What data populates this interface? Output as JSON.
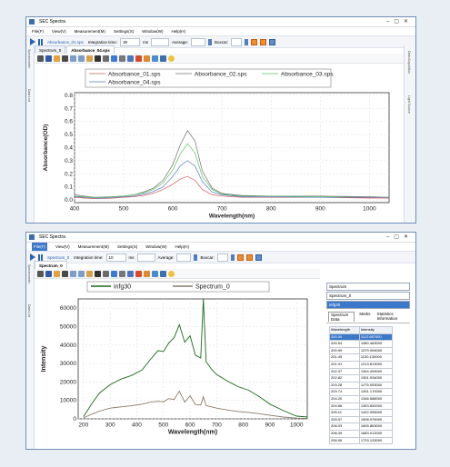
{
  "window1": {
    "title": "SEC Spectra",
    "menu": [
      "File(F)",
      "View(V)",
      "Measurement(M)",
      "Settings(S)",
      "Window(W)",
      "Help(H)"
    ],
    "toolbar": {
      "file_field": "Absorbance_01.sps",
      "integration_label": "Integration time:",
      "integration_value": "30",
      "unit": "ms",
      "average_label": "Average:",
      "boxcar_label": "Boxcar:"
    },
    "tabs": [
      "Spectrum_0",
      "Absorbance_04.sps"
    ],
    "right_vtabs": [
      "Data Acquisition",
      "Light Source"
    ],
    "left_vtabs": [
      "Spectrometer",
      "Data List"
    ]
  },
  "window2": {
    "title": "SEC Spectra",
    "menu": [
      "File(F)",
      "View(V)",
      "Measurement(M)",
      "Settings(S)",
      "Window(W)",
      "Help(H)"
    ],
    "toolbar": {
      "file_field": "Spectrum_0",
      "integration_label": "Integration time:",
      "integration_value": "10",
      "unit": "ms",
      "average_label": "Average:",
      "boxcar_label": "Boxcar:"
    },
    "tabs": [
      "Spectrum_0"
    ],
    "left_vtabs": [
      "Spectrometer",
      "Data List"
    ],
    "side": {
      "spectrum_header": "Spectrum",
      "items": [
        "Spectrum_0",
        "infg30"
      ],
      "tabs": [
        "Spectrum Data",
        "Marks",
        "Statistics Information"
      ],
      "col_wavelength": "Wavelength",
      "col_intensity": "Intensity",
      "rows": [
        [
          "200.00",
          "1112.687000"
        ],
        [
          "200.54",
          "1080.483000"
        ],
        [
          "200.99",
          "1079.054000"
        ],
        [
          "201.45",
          "1130.130000"
        ],
        [
          "201.91",
          "1213.819000"
        ],
        [
          "202.37",
          "1304.493000"
        ],
        [
          "202.82",
          "1301.034000"
        ],
        [
          "203.28",
          "1275.053000"
        ],
        [
          "203.74",
          "1301.170000"
        ],
        [
          "204.20",
          "1346.588000"
        ],
        [
          "204.66",
          "1353.830000"
        ],
        [
          "205.11",
          "1422.055000"
        ],
        [
          "205.57",
          "1508.975000"
        ],
        [
          "206.03",
          "1605.863000"
        ],
        [
          "206.49",
          "1683.012000"
        ],
        [
          "206.95",
          "1733.133000"
        ]
      ]
    }
  },
  "chart_data": [
    {
      "type": "line",
      "xlabel": "Wavelength(nm)",
      "ylabel": "Absorbance(OD)",
      "xlim": [
        400,
        1040
      ],
      "ylim": [
        -0.02,
        0.82
      ],
      "xticks": [
        400,
        500,
        600,
        700,
        800,
        900,
        1000
      ],
      "yticks": [
        0.0,
        0.1,
        0.2,
        0.3,
        0.4,
        0.5,
        0.6,
        0.7,
        0.8
      ],
      "grid": true,
      "legend_position": "top",
      "x": [
        400,
        420,
        440,
        460,
        480,
        500,
        520,
        540,
        560,
        580,
        600,
        615,
        630,
        645,
        660,
        680,
        700,
        740,
        800,
        900,
        1000,
        1040
      ],
      "series": [
        {
          "name": "Absorbance_01.sps",
          "color": "#d05a5a",
          "values": [
            0.02,
            0.015,
            0.01,
            0.012,
            0.015,
            0.02,
            0.025,
            0.035,
            0.05,
            0.08,
            0.12,
            0.16,
            0.18,
            0.15,
            0.08,
            0.04,
            0.03,
            0.02,
            0.02,
            0.02,
            0.015,
            0.015
          ]
        },
        {
          "name": "Absorbance_02.sps",
          "color": "#707070",
          "values": [
            0.04,
            0.03,
            0.02,
            0.022,
            0.025,
            0.03,
            0.04,
            0.06,
            0.09,
            0.15,
            0.27,
            0.42,
            0.53,
            0.45,
            0.22,
            0.09,
            0.05,
            0.035,
            0.03,
            0.03,
            0.025,
            0.02
          ]
        },
        {
          "name": "Absorbance_03.sps",
          "color": "#5cc35c",
          "values": [
            0.03,
            0.025,
            0.02,
            0.02,
            0.025,
            0.03,
            0.04,
            0.055,
            0.08,
            0.13,
            0.23,
            0.35,
            0.43,
            0.36,
            0.18,
            0.08,
            0.045,
            0.03,
            0.03,
            0.025,
            0.02,
            0.02
          ]
        },
        {
          "name": "Absorbance_04.sps",
          "color": "#4f79c0",
          "values": [
            0.025,
            0.02,
            0.015,
            0.015,
            0.02,
            0.025,
            0.03,
            0.045,
            0.065,
            0.1,
            0.18,
            0.26,
            0.3,
            0.26,
            0.14,
            0.06,
            0.04,
            0.025,
            0.025,
            0.02,
            0.02,
            0.02
          ]
        }
      ]
    },
    {
      "type": "line",
      "xlabel": "Wavelength(nm)",
      "ylabel": "Intensity",
      "xlim": [
        180,
        1040
      ],
      "ylim": [
        0,
        65000
      ],
      "xticks": [
        200,
        300,
        400,
        500,
        600,
        700,
        800,
        900,
        1000
      ],
      "yticks": [
        0,
        10000,
        20000,
        30000,
        40000,
        50000,
        60000
      ],
      "grid": true,
      "legend_position": "top",
      "x": [
        200,
        230,
        260,
        300,
        340,
        380,
        420,
        450,
        480,
        500,
        520,
        540,
        560,
        580,
        600,
        620,
        640,
        650,
        660,
        680,
        700,
        740,
        780,
        820,
        860,
        900,
        950,
        1000,
        1040
      ],
      "series": [
        {
          "name": "infg30",
          "color": "#1a6b1a",
          "values": [
            1200,
            8000,
            14000,
            18500,
            21500,
            23500,
            26500,
            32000,
            37000,
            36500,
            41000,
            44000,
            51000,
            41500,
            45000,
            34500,
            33000,
            65000,
            31000,
            27000,
            24000,
            20500,
            17500,
            15500,
            12000,
            8000,
            4500,
            1500,
            1000
          ]
        },
        {
          "name": "Spectrum_0",
          "color": "#8a7a6a",
          "values": [
            500,
            2500,
            4200,
            5800,
            6500,
            7100,
            8000,
            9000,
            9500,
            9200,
            11000,
            10500,
            15000,
            9000,
            12500,
            7800,
            7500,
            12000,
            7200,
            6500,
            5800,
            4800,
            4000,
            3500,
            2800,
            1900,
            1000,
            400,
            200
          ]
        }
      ]
    }
  ]
}
